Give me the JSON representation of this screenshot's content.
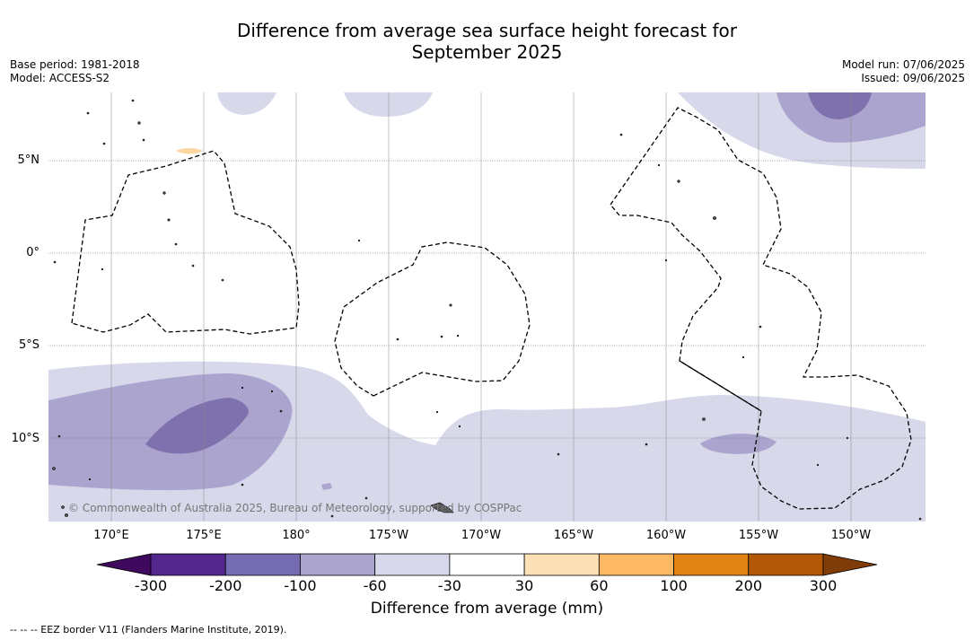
{
  "title_line1": "Difference from average sea surface height forecast for",
  "title_line2": "September 2025",
  "meta": {
    "base_period": "Base period: 1981-2018",
    "model": "Model: ACCESS-S2",
    "model_run": "Model run: 07/06/2025",
    "issued": "Issued: 09/06/2025"
  },
  "lat_labels": [
    "5°N",
    "0°",
    "5°S",
    "10°S"
  ],
  "lon_labels": [
    "170°E",
    "175°E",
    "180°",
    "175°W",
    "170°W",
    "165°W",
    "160°W",
    "155°W",
    "150°W"
  ],
  "credit": "© Commonwealth of Australia 2025, Bureau of Meteorology, supported by COSPPac",
  "colorbar": {
    "title": "Difference from average (mm)",
    "ticks": [
      "-300",
      "-200",
      "-100",
      "-60",
      "-30",
      "30",
      "60",
      "100",
      "200",
      "300"
    ],
    "colors": [
      "#3f0a5e",
      "#54278f",
      "#756bb1",
      "#aba4cf",
      "#d7d8ea",
      "#ffffff",
      "#fee0b6",
      "#fdb863",
      "#e08214",
      "#b35806",
      "#7f3b08"
    ]
  },
  "footnote": "--  --  -- EEZ border V11 (Flanders Marine Institute, 2019)."
}
